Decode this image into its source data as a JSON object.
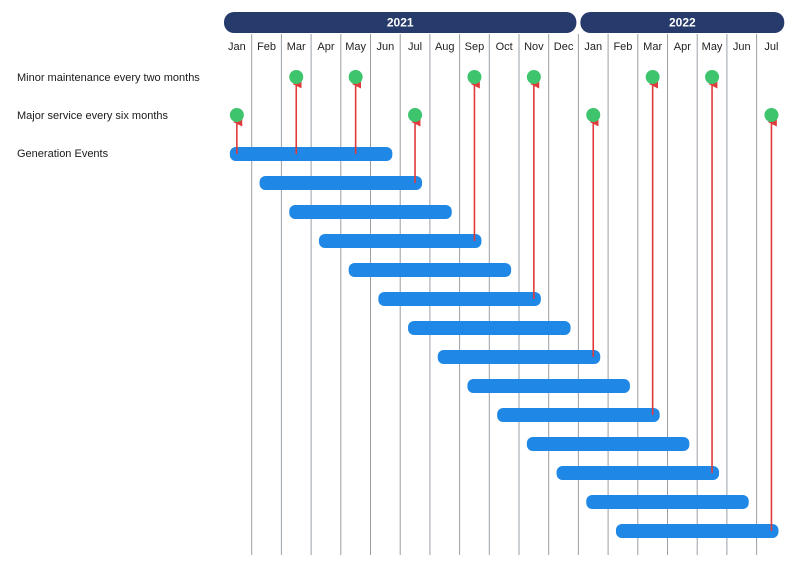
{
  "colors": {
    "year_band": "#263a6b",
    "gridline": "#9aa0a6",
    "event_bar": "#1f87e5",
    "milestone": "#3ec46d",
    "arrow": "#e03a3a"
  },
  "rows": {
    "minor": "Minor maintenance every two months",
    "major": "Major service every six months",
    "events": "Generation Events"
  },
  "chart_data": {
    "type": "timeline",
    "years": [
      {
        "label": "2021",
        "start": 0,
        "end": 12
      },
      {
        "label": "2022",
        "start": 12,
        "end": 19
      }
    ],
    "months": [
      "Jan",
      "Feb",
      "Mar",
      "Apr",
      "May",
      "Jun",
      "Jul",
      "Aug",
      "Sep",
      "Oct",
      "Nov",
      "Dec",
      "Jan",
      "Feb",
      "Mar",
      "Apr",
      "May",
      "Jun",
      "Jul"
    ],
    "minor_maintenance_months": [
      2,
      4,
      8,
      10,
      14,
      16
    ],
    "major_service_months": [
      0,
      6,
      12,
      18
    ],
    "generation_events": [
      {
        "start": 0,
        "end": 5
      },
      {
        "start": 1,
        "end": 6
      },
      {
        "start": 2,
        "end": 7
      },
      {
        "start": 3,
        "end": 8
      },
      {
        "start": 4,
        "end": 9
      },
      {
        "start": 5,
        "end": 10
      },
      {
        "start": 6,
        "end": 11
      },
      {
        "start": 7,
        "end": 12
      },
      {
        "start": 8,
        "end": 13
      },
      {
        "start": 9,
        "end": 14
      },
      {
        "start": 10,
        "end": 15
      },
      {
        "start": 11,
        "end": 16
      },
      {
        "start": 12,
        "end": 17
      },
      {
        "start": 13,
        "end": 18
      }
    ],
    "links": [
      {
        "type": "major",
        "month": 0,
        "event": 0
      },
      {
        "type": "minor",
        "month": 2,
        "event": 0
      },
      {
        "type": "minor",
        "month": 4,
        "event": 0
      },
      {
        "type": "major",
        "month": 6,
        "event": 1
      },
      {
        "type": "minor",
        "month": 8,
        "event": 3
      },
      {
        "type": "minor",
        "month": 10,
        "event": 5
      },
      {
        "type": "major",
        "month": 12,
        "event": 7
      },
      {
        "type": "minor",
        "month": 14,
        "event": 9
      },
      {
        "type": "minor",
        "month": 16,
        "event": 11
      },
      {
        "type": "major",
        "month": 18,
        "event": 13
      }
    ]
  }
}
